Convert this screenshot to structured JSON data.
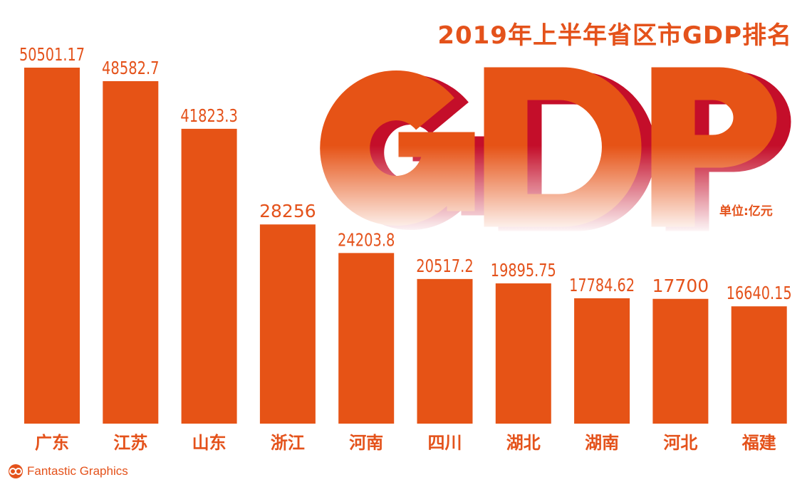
{
  "chart_data": {
    "type": "bar",
    "title": "2019年上半年省区市GDP排名",
    "unit_label": "单位:亿元",
    "decorative_text": "GDP",
    "categories": [
      "广东",
      "江苏",
      "山东",
      "浙江",
      "河南",
      "四川",
      "湖北",
      "湖南",
      "河北",
      "福建"
    ],
    "value_labels": [
      "50501.17",
      "48582.7",
      "41823.3",
      "28256",
      "24203.8",
      "20517.2",
      "19895.75",
      "17784.62",
      "17700",
      "16640.15"
    ],
    "values": [
      50501.17,
      48582.7,
      41823.3,
      28256,
      24203.8,
      20517.2,
      19895.75,
      17784.62,
      17700,
      16640.15
    ],
    "ylim": [
      0,
      50501.17
    ],
    "grid": false,
    "colors": {
      "bar": "#e65316",
      "text": "#e4521b",
      "shadow": "#c40e2a"
    }
  },
  "credit": "Fantastic Graphics"
}
